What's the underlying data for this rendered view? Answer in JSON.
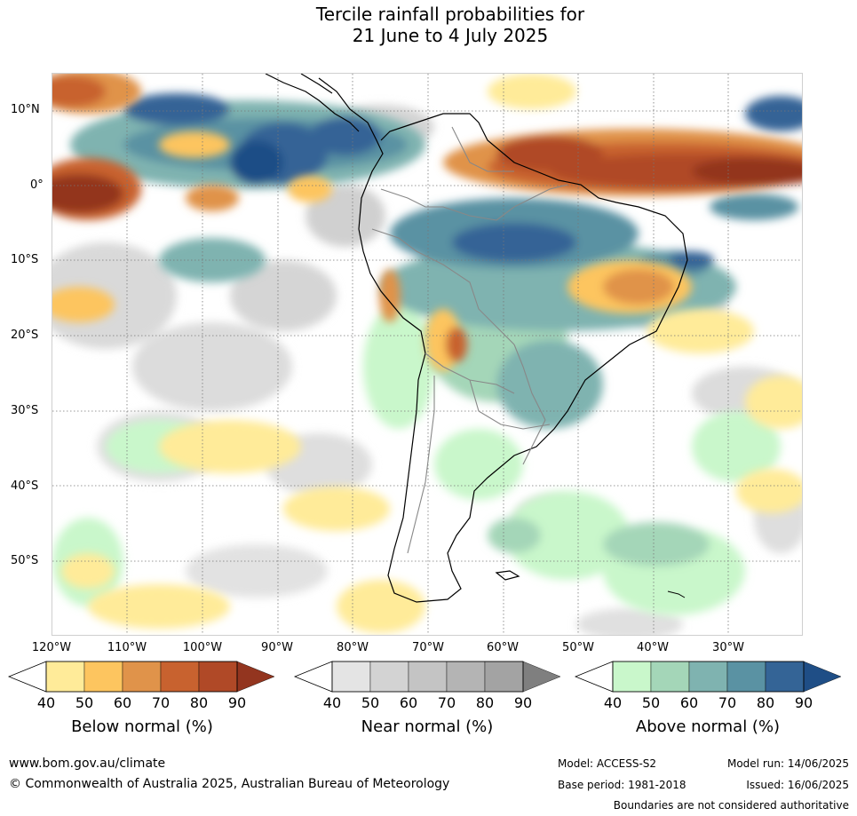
{
  "title_line1": "Tercile rainfall probabilities for",
  "title_line2": "21 June to 4 July 2025",
  "map": {
    "lat_labels": [
      "10°N",
      "0°",
      "10°S",
      "20°S",
      "30°S",
      "40°S",
      "50°S"
    ],
    "lon_labels": [
      "120°W",
      "110°W",
      "100°W",
      "90°W",
      "80°W",
      "70°W",
      "60°W",
      "50°W",
      "40°W",
      "30°W"
    ],
    "gridlines": true,
    "colors": {
      "below": [
        "#ffeb99",
        "#fdc55f",
        "#e0934a",
        "#c8622f",
        "#b04927",
        "#93351f"
      ],
      "near": [
        "#e4e4e4",
        "#d3d3d3",
        "#c4c4c4",
        "#b4b4b4",
        "#a3a3a3",
        "#7f7f7f"
      ],
      "above": [
        "#c9f7cb",
        "#a4d6b8",
        "#7fb3b0",
        "#5a92a3",
        "#346496",
        "#1f4e86"
      ]
    }
  },
  "legend": {
    "ticks": [
      "40",
      "50",
      "60",
      "70",
      "80",
      "90"
    ],
    "below_title": "Below normal (%)",
    "near_title": "Near normal (%)",
    "above_title": "Above normal (%)"
  },
  "footer": {
    "website": "www.bom.gov.au/climate",
    "copyright": "© Commonwealth of Australia 2025, Australian Bureau of Meteorology",
    "model": "Model: ACCESS-S2",
    "base_period": "Base period: 1981-2018",
    "model_run": "Model run: 14/06/2025",
    "issued": "Issued: 16/06/2025",
    "boundaries_note": "Boundaries are not considered authoritative"
  }
}
